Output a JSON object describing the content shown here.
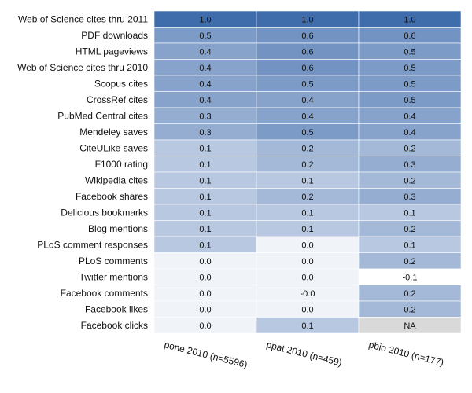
{
  "chart_data": {
    "type": "heatmap",
    "rows": [
      "Web of Science cites thru 2011",
      "PDF downloads",
      "HTML pageviews",
      "Web of Science cites thru 2010",
      "Scopus cites",
      "CrossRef cites",
      "PubMed Central cites",
      "Mendeley saves",
      "CiteULike saves",
      "F1000 rating",
      "Wikipedia cites",
      "Facebook shares",
      "Delicious bookmarks",
      "Blog mentions",
      "PLoS comment responses",
      "PLoS comments",
      "Twitter mentions",
      "Facebook comments",
      "Facebook likes",
      "Facebook clicks"
    ],
    "columns": [
      "pone 2010 (n=5596)",
      "ppat 2010 (n=459)",
      "pbio 2010 (n=177)"
    ],
    "values": [
      [
        1.0,
        1.0,
        1.0
      ],
      [
        0.5,
        0.6,
        0.6
      ],
      [
        0.4,
        0.6,
        0.5
      ],
      [
        0.4,
        0.6,
        0.5
      ],
      [
        0.4,
        0.5,
        0.5
      ],
      [
        0.4,
        0.4,
        0.5
      ],
      [
        0.3,
        0.4,
        0.4
      ],
      [
        0.3,
        0.5,
        0.4
      ],
      [
        0.1,
        0.2,
        0.2
      ],
      [
        0.1,
        0.2,
        0.3
      ],
      [
        0.1,
        0.1,
        0.2
      ],
      [
        0.1,
        0.2,
        0.3
      ],
      [
        0.1,
        0.1,
        0.1
      ],
      [
        0.1,
        0.1,
        0.2
      ],
      [
        0.1,
        0.0,
        0.1
      ],
      [
        0.0,
        0.0,
        0.2
      ],
      [
        0.0,
        0.0,
        -0.1
      ],
      [
        0.0,
        -0.0,
        0.2
      ],
      [
        0.0,
        0.0,
        0.2
      ],
      [
        0.0,
        0.1,
        null
      ]
    ],
    "labels": [
      [
        "1.0",
        "1.0",
        "1.0"
      ],
      [
        "0.5",
        "0.6",
        "0.6"
      ],
      [
        "0.4",
        "0.6",
        "0.5"
      ],
      [
        "0.4",
        "0.6",
        "0.5"
      ],
      [
        "0.4",
        "0.5",
        "0.5"
      ],
      [
        "0.4",
        "0.4",
        "0.5"
      ],
      [
        "0.3",
        "0.4",
        "0.4"
      ],
      [
        "0.3",
        "0.5",
        "0.4"
      ],
      [
        "0.1",
        "0.2",
        "0.2"
      ],
      [
        "0.1",
        "0.2",
        "0.3"
      ],
      [
        "0.1",
        "0.1",
        "0.2"
      ],
      [
        "0.1",
        "0.2",
        "0.3"
      ],
      [
        "0.1",
        "0.1",
        "0.1"
      ],
      [
        "0.1",
        "0.1",
        "0.2"
      ],
      [
        "0.1",
        "0.0",
        "0.1"
      ],
      [
        "0.0",
        "0.0",
        "0.2"
      ],
      [
        "0.0",
        "0.0",
        "-0.1"
      ],
      [
        "0.0",
        "-0.0",
        "0.2"
      ],
      [
        "0.0",
        "0.0",
        "0.2"
      ],
      [
        "0.0",
        "0.1",
        "NA"
      ]
    ],
    "na_label": "NA",
    "colors": {
      "low": "#ffffff",
      "high": "#3f6cab",
      "na": "#d9d9d9",
      "text": "#111111"
    },
    "legend": "none",
    "grid": false
  }
}
